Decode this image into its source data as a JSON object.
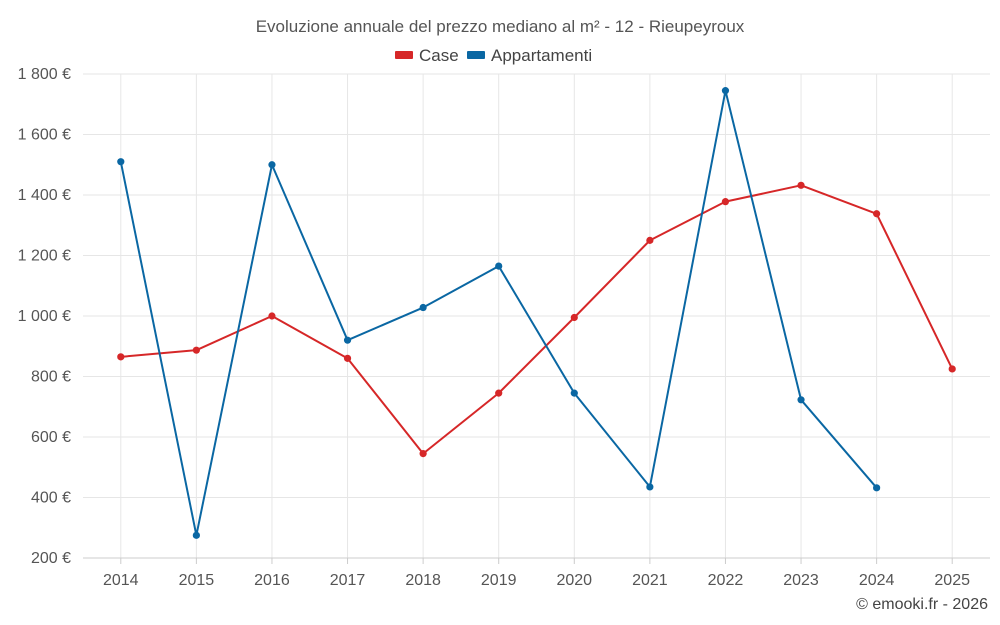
{
  "chart_data": {
    "type": "line",
    "title": "Evoluzione annuale del prezzo mediano al m² - 12 - Rieupeyroux",
    "categories": [
      "2014",
      "2015",
      "2016",
      "2017",
      "2018",
      "2019",
      "2020",
      "2021",
      "2022",
      "2023",
      "2024",
      "2025"
    ],
    "ylim": [
      200,
      1800
    ],
    "yticks": [
      200,
      400,
      600,
      800,
      1000,
      1200,
      1400,
      1600,
      1800
    ],
    "ytick_labels": [
      "200 €",
      "400 €",
      "600 €",
      "800 €",
      "1 000 €",
      "1 200 €",
      "1 400 €",
      "1 600 €",
      "1 800 €"
    ],
    "grid": true,
    "legend_position": "top-center",
    "series": [
      {
        "name": "Case",
        "color": "#d62728",
        "values": [
          865,
          887,
          1000,
          860,
          545,
          745,
          995,
          1250,
          1378,
          1432,
          1338,
          825
        ]
      },
      {
        "name": "Appartamenti",
        "color": "#0a67a3",
        "values": [
          1510,
          275,
          1500,
          920,
          1028,
          1165,
          745,
          435,
          1745,
          723,
          432,
          null
        ]
      }
    ]
  },
  "credit": "© emooki.fr - 2026"
}
